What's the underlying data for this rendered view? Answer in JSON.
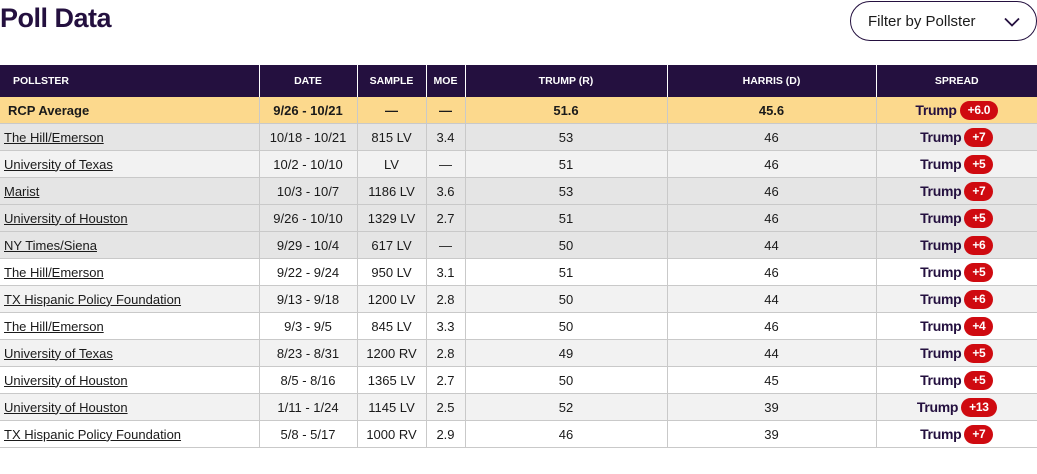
{
  "page": {
    "title": "Poll Data",
    "filter_label": "Filter by Pollster"
  },
  "table": {
    "headers": [
      "POLLSTER",
      "DATE",
      "SAMPLE",
      "MOE",
      "TRUMP (R)",
      "HARRIS (D)",
      "SPREAD"
    ],
    "average": {
      "pollster": "RCP Average",
      "date": "9/26 - 10/21",
      "sample": "—",
      "moe": "—",
      "trump": "51.6",
      "harris": "45.6",
      "spread_name": "Trump",
      "spread_value": "+6.0"
    },
    "rows": [
      {
        "pollster": "The Hill/Emerson",
        "date": "10/18 - 10/21",
        "sample": "815 LV",
        "moe": "3.4",
        "trump": "53",
        "harris": "46",
        "spread_name": "Trump",
        "spread_value": "+7"
      },
      {
        "pollster": "University of Texas",
        "date": "10/2 - 10/10",
        "sample": "LV",
        "moe": "—",
        "trump": "51",
        "harris": "46",
        "spread_name": "Trump",
        "spread_value": "+5"
      },
      {
        "pollster": "Marist",
        "date": "10/3 - 10/7",
        "sample": "1186 LV",
        "moe": "3.6",
        "trump": "53",
        "harris": "46",
        "spread_name": "Trump",
        "spread_value": "+7"
      },
      {
        "pollster": "University of Houston",
        "date": "9/26 - 10/10",
        "sample": "1329 LV",
        "moe": "2.7",
        "trump": "51",
        "harris": "46",
        "spread_name": "Trump",
        "spread_value": "+5"
      },
      {
        "pollster": "NY Times/Siena",
        "date": "9/29 - 10/4",
        "sample": "617 LV",
        "moe": "—",
        "trump": "50",
        "harris": "44",
        "spread_name": "Trump",
        "spread_value": "+6"
      },
      {
        "pollster": "The Hill/Emerson",
        "date": "9/22 - 9/24",
        "sample": "950 LV",
        "moe": "3.1",
        "trump": "51",
        "harris": "46",
        "spread_name": "Trump",
        "spread_value": "+5"
      },
      {
        "pollster": "TX Hispanic Policy Foundation",
        "date": "9/13 - 9/18",
        "sample": "1200 LV",
        "moe": "2.8",
        "trump": "50",
        "harris": "44",
        "spread_name": "Trump",
        "spread_value": "+6"
      },
      {
        "pollster": "The Hill/Emerson",
        "date": "9/3 - 9/5",
        "sample": "845 LV",
        "moe": "3.3",
        "trump": "50",
        "harris": "46",
        "spread_name": "Trump",
        "spread_value": "+4"
      },
      {
        "pollster": "University of Texas",
        "date": "8/23 - 8/31",
        "sample": "1200 RV",
        "moe": "2.8",
        "trump": "49",
        "harris": "44",
        "spread_name": "Trump",
        "spread_value": "+5"
      },
      {
        "pollster": "University of Houston",
        "date": "8/5 - 8/16",
        "sample": "1365 LV",
        "moe": "2.7",
        "trump": "50",
        "harris": "45",
        "spread_name": "Trump",
        "spread_value": "+5"
      },
      {
        "pollster": "University of Houston",
        "date": "1/11 - 1/24",
        "sample": "1145 LV",
        "moe": "2.5",
        "trump": "52",
        "harris": "39",
        "spread_name": "Trump",
        "spread_value": "+13"
      },
      {
        "pollster": "TX Hispanic Policy Foundation",
        "date": "5/8 - 5/17",
        "sample": "1000 RV",
        "moe": "2.9",
        "trump": "46",
        "harris": "39",
        "spread_name": "Trump",
        "spread_value": "+7"
      }
    ]
  },
  "colors": {
    "header_bg": "#24103f",
    "average_bg": "#fcd98d",
    "badge_red": "#cf0a10"
  },
  "icons": {
    "filter_dropdown": "chevron-down-icon"
  }
}
